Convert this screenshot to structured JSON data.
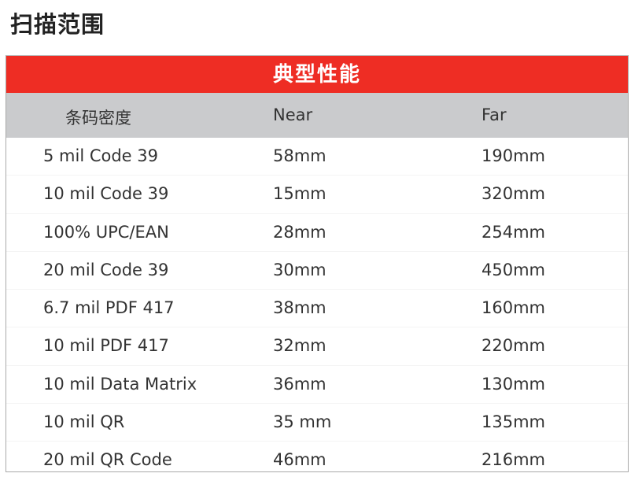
{
  "title": "扫描范围",
  "table": {
    "banner": "典型性能",
    "headers": [
      "条码密度",
      "Near",
      "Far"
    ],
    "rows": [
      [
        "5 mil Code 39",
        "58mm",
        "190mm"
      ],
      [
        "10 mil Code 39",
        "15mm",
        "320mm"
      ],
      [
        "100% UPC/EAN",
        "28mm",
        "254mm"
      ],
      [
        "20 mil Code 39",
        "30mm",
        "450mm"
      ],
      [
        "6.7 mil PDF 417",
        "38mm",
        "160mm"
      ],
      [
        "10 mil PDF 417",
        "32mm",
        "220mm"
      ],
      [
        "10 mil Data Matrix",
        "36mm",
        "130mm"
      ],
      [
        "10 mil QR",
        "35 mm",
        "135mm"
      ],
      [
        "20 mil QR Code",
        "46mm",
        "216mm"
      ]
    ],
    "colors": {
      "banner": "#ee2d24",
      "header": "#cacbcd"
    }
  }
}
